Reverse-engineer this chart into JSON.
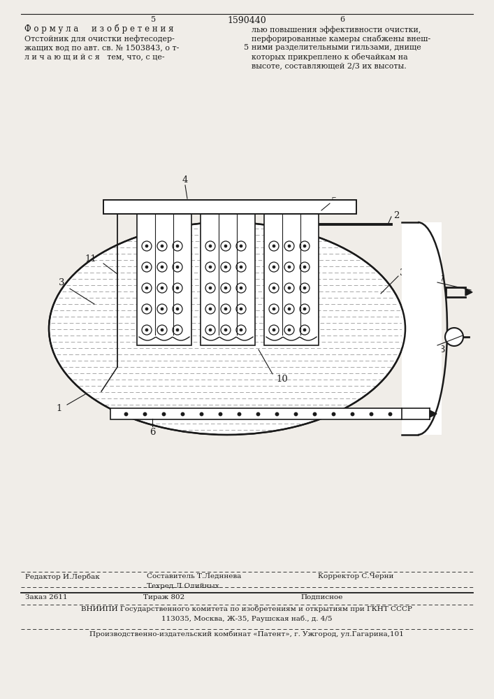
{
  "page_number_left": "5",
  "page_number_center": "1590440",
  "page_number_right": "6",
  "formula_title": "Ф о р м у л а     и з о б р е т е н и я",
  "mid_number": "5",
  "left_line1": "Отстойник для очистки нефтесодер-",
  "left_line2": "жащих вод по авт. св. № 1503843, о т-",
  "left_line3": "л и ч а ю щ и й с я   тем, что, с це-",
  "right_line1": "лью повышения эффективности очистки,",
  "right_line2": "перфорированные камеры снабжены внеш-",
  "right_line3": "ними разделительными гильзами, днище",
  "right_line4": "которых прикреплено к обечайкам на",
  "right_line5": "высоте, составляющей 2/3 их высоты.",
  "footer_editor": "Редактор И.Лербак",
  "footer_composer": "Составитель Т.Ледннева",
  "footer_tech": "Техред Л.Олийных",
  "footer_corrector": "Корректор С.Черни",
  "footer_order": "Заказ 2611",
  "footer_tirazh": "Тираж 802",
  "footer_podp": "Подписное",
  "footer_vnipi": "ВНИИПИ Государственного комитета по изобретениям и открытиям при ГКНТ СССР",
  "footer_address": "113035, Москва, Ж-35, Раушская наб., д. 4/5",
  "footer_kombitat": "Производственно-издательский комбинат «Патент», г. Ужгород, ул.Гагарина,101",
  "bg_color": "#f0ede8",
  "line_color": "#1a1a1a"
}
